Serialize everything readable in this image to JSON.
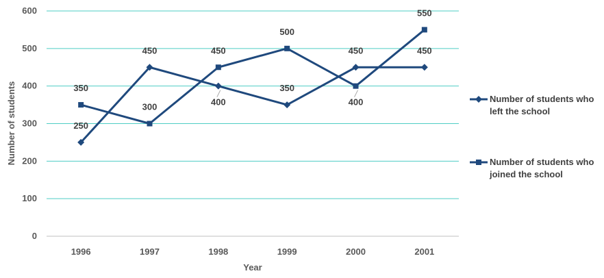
{
  "chart_data": {
    "type": "line",
    "categories": [
      "1996",
      "1997",
      "1998",
      "1999",
      "2000",
      "2001"
    ],
    "series": [
      {
        "name": "Number of students who left the school",
        "name_lines": [
          "Number of students who",
          "left the school"
        ],
        "marker": "diamond",
        "values": [
          250,
          450,
          400,
          350,
          450,
          450
        ]
      },
      {
        "name": "Number of students who joined the school",
        "name_lines": [
          "Number of students who",
          "joined the school"
        ],
        "marker": "square",
        "values": [
          350,
          300,
          450,
          500,
          400,
          550
        ]
      }
    ],
    "xlabel": "Year",
    "ylabel": "Number of students",
    "ylim": [
      0,
      600
    ],
    "yticks": [
      0,
      100,
      200,
      300,
      400,
      500,
      600
    ],
    "grid": true,
    "legend": "right",
    "colors": {
      "series": "#1F497D",
      "grid": "#4ECDC4",
      "text": "#595959"
    }
  }
}
